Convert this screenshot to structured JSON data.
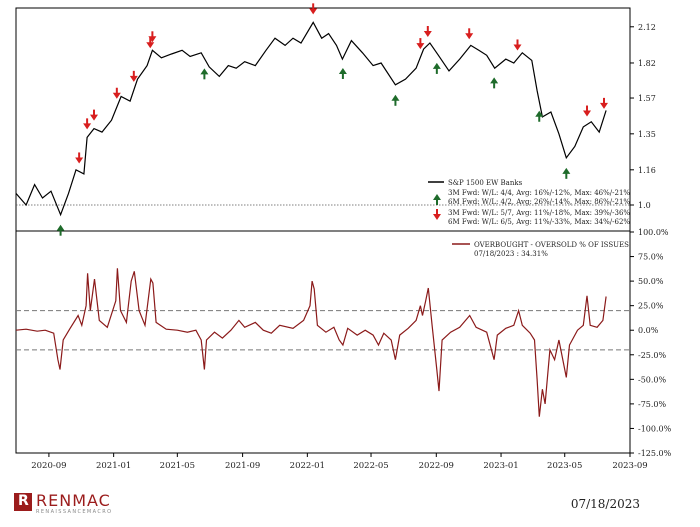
{
  "chart_data": [
    {
      "type": "line",
      "title": "",
      "yscale": "log",
      "ylim": [
        0.9,
        2.2
      ],
      "yticks": [
        "2.12",
        "1.82",
        "1.57",
        "1.35",
        "1.16",
        "1.0"
      ],
      "reference_line": 1.0,
      "series": [
        {
          "name": "S&P 1500 EW Banks",
          "color": "#000000",
          "points": [
            [
              "2020-07-01",
              1.05
            ],
            [
              "2020-07-20",
              1.0
            ],
            [
              "2020-08-05",
              1.09
            ],
            [
              "2020-08-20",
              1.03
            ],
            [
              "2020-09-05",
              1.06
            ],
            [
              "2020-09-23",
              0.96
            ],
            [
              "2020-10-08",
              1.05
            ],
            [
              "2020-10-22",
              1.16
            ],
            [
              "2020-11-06",
              1.14
            ],
            [
              "2020-11-12",
              1.33
            ],
            [
              "2020-11-25",
              1.38
            ],
            [
              "2020-12-10",
              1.36
            ],
            [
              "2020-12-28",
              1.43
            ],
            [
              "2021-01-15",
              1.58
            ],
            [
              "2021-02-01",
              1.55
            ],
            [
              "2021-02-15",
              1.7
            ],
            [
              "2021-03-05",
              1.8
            ],
            [
              "2021-03-15",
              1.92
            ],
            [
              "2021-04-01",
              1.86
            ],
            [
              "2021-04-20",
              1.89
            ],
            [
              "2021-05-10",
              1.92
            ],
            [
              "2021-05-25",
              1.87
            ],
            [
              "2021-06-15",
              1.9
            ],
            [
              "2021-06-30",
              1.79
            ],
            [
              "2021-07-19",
              1.72
            ],
            [
              "2021-08-05",
              1.8
            ],
            [
              "2021-08-20",
              1.78
            ],
            [
              "2021-09-05",
              1.83
            ],
            [
              "2021-09-25",
              1.8
            ],
            [
              "2021-10-15",
              1.92
            ],
            [
              "2021-11-01",
              2.02
            ],
            [
              "2021-11-20",
              1.96
            ],
            [
              "2021-12-05",
              2.02
            ],
            [
              "2021-12-20",
              1.98
            ],
            [
              "2022-01-12",
              2.16
            ],
            [
              "2022-01-28",
              2.02
            ],
            [
              "2022-02-10",
              2.06
            ],
            [
              "2022-02-25",
              1.96
            ],
            [
              "2022-03-08",
              1.85
            ],
            [
              "2022-03-25",
              2.0
            ],
            [
              "2022-04-15",
              1.9
            ],
            [
              "2022-05-05",
              1.8
            ],
            [
              "2022-05-20",
              1.82
            ],
            [
              "2022-06-16",
              1.66
            ],
            [
              "2022-07-05",
              1.7
            ],
            [
              "2022-07-25",
              1.78
            ],
            [
              "2022-08-08",
              1.93
            ],
            [
              "2022-08-20",
              1.98
            ],
            [
              "2022-09-05",
              1.88
            ],
            [
              "2022-09-25",
              1.76
            ],
            [
              "2022-10-15",
              1.85
            ],
            [
              "2022-11-05",
              1.96
            ],
            [
              "2022-11-20",
              1.92
            ],
            [
              "2022-12-05",
              1.88
            ],
            [
              "2022-12-20",
              1.78
            ],
            [
              "2023-01-10",
              1.85
            ],
            [
              "2023-01-25",
              1.82
            ],
            [
              "2023-02-10",
              1.9
            ],
            [
              "2023-02-28",
              1.84
            ],
            [
              "2023-03-10",
              1.62
            ],
            [
              "2023-03-20",
              1.45
            ],
            [
              "2023-04-05",
              1.48
            ],
            [
              "2023-04-20",
              1.35
            ],
            [
              "2023-05-04",
              1.22
            ],
            [
              "2023-05-20",
              1.28
            ],
            [
              "2023-06-05",
              1.39
            ],
            [
              "2023-06-20",
              1.42
            ],
            [
              "2023-07-05",
              1.36
            ],
            [
              "2023-07-18",
              1.49
            ]
          ]
        }
      ],
      "up_arrows": [
        "2020-09-23",
        "2021-06-21",
        "2022-03-09",
        "2022-06-16",
        "2022-09-02",
        "2022-12-19",
        "2023-03-14",
        "2023-05-04"
      ],
      "down_arrows": [
        "2020-10-28",
        "2020-11-12",
        "2020-11-25",
        "2021-01-07",
        "2021-02-08",
        "2021-03-11",
        "2021-03-15",
        "2022-01-12",
        "2022-08-02",
        "2022-08-16",
        "2022-11-02",
        "2023-02-01",
        "2023-06-12",
        "2023-07-14"
      ],
      "legend": {
        "series_label": "S&P 1500 EW Banks",
        "up_lines": [
          "3M Fwd: W/L: 4/4, Avg: 16%/-12%, Max: 46%/-21%",
          "6M Fwd: W/L: 4/2, Avg: 26%/-14%, Max: 86%/-21%"
        ],
        "down_lines": [
          "3M Fwd: W/L: 5/7, Avg: 11%/-18%, Max: 39%/-36%",
          "6M Fwd: W/L: 6/5, Avg: 11%/-33%, Max: 34%/-62%"
        ],
        "position": "right"
      }
    },
    {
      "type": "line",
      "title": "",
      "ylim": [
        -125,
        100
      ],
      "yticks": [
        "100.0%",
        "75.0%",
        "50.0%",
        "25.0%",
        "0.0%",
        "-25.0%",
        "-50.0%",
        "-75.0%",
        "-100.0%",
        "-125.0%"
      ],
      "reference_lines": [
        20,
        -20
      ],
      "series": [
        {
          "name": "OVERBOUGHT - OVERSOLD % OF ISSUES",
          "color": "#8b1a1a",
          "points": [
            [
              "2020-07-01",
              0
            ],
            [
              "2020-07-20",
              1
            ],
            [
              "2020-08-10",
              -1
            ],
            [
              "2020-08-25",
              0
            ],
            [
              "2020-09-10",
              -3
            ],
            [
              "2020-09-18",
              -30
            ],
            [
              "2020-09-22",
              -40
            ],
            [
              "2020-09-28",
              -10
            ],
            [
              "2020-10-10",
              1
            ],
            [
              "2020-10-26",
              15
            ],
            [
              "2020-11-02",
              5
            ],
            [
              "2020-11-10",
              25
            ],
            [
              "2020-11-13",
              58
            ],
            [
              "2020-11-18",
              20
            ],
            [
              "2020-11-26",
              52
            ],
            [
              "2020-12-05",
              10
            ],
            [
              "2020-12-20",
              3
            ],
            [
              "2021-01-05",
              30
            ],
            [
              "2021-01-08",
              63
            ],
            [
              "2021-01-14",
              20
            ],
            [
              "2021-01-25",
              8
            ],
            [
              "2021-02-03",
              50
            ],
            [
              "2021-02-09",
              60
            ],
            [
              "2021-02-18",
              20
            ],
            [
              "2021-03-01",
              5
            ],
            [
              "2021-03-08",
              35
            ],
            [
              "2021-03-12",
              52
            ],
            [
              "2021-03-16",
              48
            ],
            [
              "2021-03-22",
              8
            ],
            [
              "2021-04-10",
              1
            ],
            [
              "2021-05-01",
              0
            ],
            [
              "2021-05-20",
              -2
            ],
            [
              "2021-06-05",
              0
            ],
            [
              "2021-06-15",
              -10
            ],
            [
              "2021-06-21",
              -40
            ],
            [
              "2021-06-25",
              -10
            ],
            [
              "2021-07-10",
              -2
            ],
            [
              "2021-07-25",
              -8
            ],
            [
              "2021-08-10",
              0
            ],
            [
              "2021-08-25",
              10
            ],
            [
              "2021-09-05",
              3
            ],
            [
              "2021-09-25",
              8
            ],
            [
              "2021-10-10",
              0
            ],
            [
              "2021-10-25",
              -3
            ],
            [
              "2021-11-10",
              5
            ],
            [
              "2021-12-05",
              2
            ],
            [
              "2021-12-25",
              10
            ],
            [
              "2022-01-06",
              25
            ],
            [
              "2022-01-10",
              50
            ],
            [
              "2022-01-14",
              42
            ],
            [
              "2022-01-20",
              5
            ],
            [
              "2022-02-05",
              -2
            ],
            [
              "2022-02-20",
              3
            ],
            [
              "2022-03-02",
              -10
            ],
            [
              "2022-03-09",
              -15
            ],
            [
              "2022-03-18",
              2
            ],
            [
              "2022-04-05",
              -5
            ],
            [
              "2022-04-20",
              0
            ],
            [
              "2022-05-05",
              -5
            ],
            [
              "2022-05-15",
              -15
            ],
            [
              "2022-05-25",
              -3
            ],
            [
              "2022-06-08",
              -10
            ],
            [
              "2022-06-16",
              -30
            ],
            [
              "2022-06-24",
              -5
            ],
            [
              "2022-07-10",
              2
            ],
            [
              "2022-07-25",
              10
            ],
            [
              "2022-08-02",
              25
            ],
            [
              "2022-08-06",
              15
            ],
            [
              "2022-08-12",
              30
            ],
            [
              "2022-08-17",
              43
            ],
            [
              "2022-08-24",
              5
            ],
            [
              "2022-09-02",
              -40
            ],
            [
              "2022-09-06",
              -62
            ],
            [
              "2022-09-12",
              -10
            ],
            [
              "2022-09-28",
              -2
            ],
            [
              "2022-10-15",
              3
            ],
            [
              "2022-11-03",
              15
            ],
            [
              "2022-11-15",
              3
            ],
            [
              "2022-12-05",
              -2
            ],
            [
              "2022-12-19",
              -30
            ],
            [
              "2022-12-25",
              -5
            ],
            [
              "2023-01-10",
              2
            ],
            [
              "2023-01-25",
              5
            ],
            [
              "2023-02-03",
              20
            ],
            [
              "2023-02-10",
              5
            ],
            [
              "2023-02-25",
              -3
            ],
            [
              "2023-03-05",
              -10
            ],
            [
              "2023-03-10",
              -50
            ],
            [
              "2023-03-14",
              -88
            ],
            [
              "2023-03-20",
              -60
            ],
            [
              "2023-03-25",
              -75
            ],
            [
              "2023-04-03",
              -20
            ],
            [
              "2023-04-12",
              -30
            ],
            [
              "2023-04-20",
              -10
            ],
            [
              "2023-05-04",
              -48
            ],
            [
              "2023-05-10",
              -15
            ],
            [
              "2023-05-25",
              0
            ],
            [
              "2023-06-05",
              5
            ],
            [
              "2023-06-12",
              35
            ],
            [
              "2023-06-18",
              5
            ],
            [
              "2023-07-01",
              3
            ],
            [
              "2023-07-12",
              10
            ],
            [
              "2023-07-18",
              34.31
            ]
          ]
        }
      ],
      "legend": {
        "series_label": "OVERBOUGHT - OVERSOLD % OF ISSUES",
        "value_label": "07/18/2023 : 34.31%",
        "position": "top-right"
      }
    }
  ],
  "x_axis": {
    "range": [
      "2020-07-01",
      "2023-09-01"
    ],
    "ticks": [
      {
        "date": "2020-09-01",
        "label": "2020-09"
      },
      {
        "date": "2021-01-01",
        "label": "2021-01"
      },
      {
        "date": "2021-05-01",
        "label": "2021-05"
      },
      {
        "date": "2021-09-01",
        "label": "2021-09"
      },
      {
        "date": "2022-01-01",
        "label": "2022-01"
      },
      {
        "date": "2022-05-01",
        "label": "2022-05"
      },
      {
        "date": "2022-09-01",
        "label": "2022-09"
      },
      {
        "date": "2023-01-01",
        "label": "2023-01"
      },
      {
        "date": "2023-05-01",
        "label": "2023-05"
      },
      {
        "date": "2023-09-01",
        "label": "2023-09"
      }
    ]
  },
  "footer": {
    "logo_name": "RENMAC",
    "logo_sub": "RENAISSANCEMACRO",
    "date": "07/18/2023"
  },
  "colors": {
    "price_line": "#000000",
    "oscillator_line": "#8b1a1a",
    "up_arrow": "#1e6b2a",
    "down_arrow": "#d81e1e",
    "reference_line": "#555555",
    "dashed_line": "#777777"
  }
}
